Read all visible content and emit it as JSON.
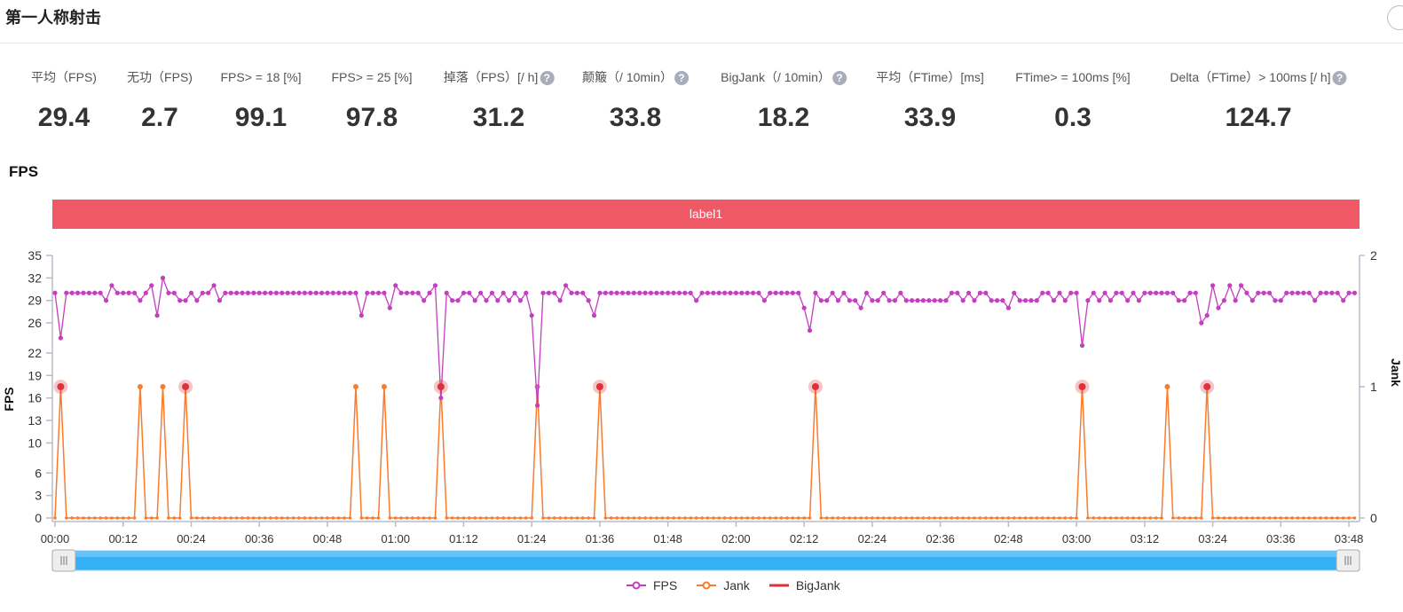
{
  "header": {
    "title": "第一人称射击"
  },
  "stats": [
    {
      "label": "平均（FPS)",
      "value": "29.4",
      "help": false
    },
    {
      "label": "无功（FPS)",
      "value": "2.7",
      "help": false
    },
    {
      "label": "FPS> = 18 [%]",
      "value": "99.1",
      "help": false
    },
    {
      "label": "FPS> = 25 [%]",
      "value": "97.8",
      "help": false
    },
    {
      "label": "掉落（FPS）[/ h]",
      "value": "31.2",
      "help": true
    },
    {
      "label": "颠簸（/ 10min）",
      "value": "33.8",
      "help": true
    },
    {
      "label": "BigJank（/ 10min）",
      "value": "18.2",
      "help": true
    },
    {
      "label": "平均（FTime）[ms]",
      "value": "33.9",
      "help": false
    },
    {
      "label": "FTime> = 100ms [%]",
      "value": "0.3",
      "help": false
    },
    {
      "label": "Delta（FTime）> 100ms [/ h]",
      "value": "124.7",
      "help": true
    }
  ],
  "help_icon": "?",
  "section": {
    "title": "FPS",
    "band_label": "label1"
  },
  "colors": {
    "fps": "#c23fbf",
    "jank": "#fb7a2c",
    "bigjank": "#e0303a",
    "band": "#ef5865",
    "slider": "#35b0f5"
  },
  "chart_data": {
    "type": "line",
    "ylabel": "FPS",
    "y2label": "Jank",
    "ylim": [
      0,
      35
    ],
    "y2lim": [
      0,
      2
    ],
    "yticks": [
      0,
      3,
      6,
      10,
      13,
      16,
      19,
      22,
      26,
      29,
      32,
      35
    ],
    "y2ticks": [
      0,
      1,
      2
    ],
    "xticks": [
      "00:00",
      "00:12",
      "00:24",
      "00:36",
      "00:48",
      "01:00",
      "01:12",
      "01:24",
      "01:36",
      "01:48",
      "02:00",
      "02:12",
      "02:24",
      "02:36",
      "02:48",
      "03:00",
      "03:12",
      "03:24",
      "03:36",
      "03:48"
    ],
    "x_step_seconds": 1,
    "series": [
      {
        "name": "FPS",
        "axis": "left",
        "values": [
          30,
          24,
          30,
          30,
          30,
          30,
          30,
          30,
          30,
          29,
          31,
          30,
          30,
          30,
          30,
          29,
          30,
          31,
          27,
          32,
          30,
          30,
          29,
          29,
          30,
          29,
          30,
          30,
          31,
          29,
          30,
          30,
          30,
          30,
          30,
          30,
          30,
          30,
          30,
          30,
          30,
          30,
          30,
          30,
          30,
          30,
          30,
          30,
          30,
          30,
          30,
          30,
          30,
          30,
          27,
          30,
          30,
          30,
          30,
          28,
          31,
          30,
          30,
          30,
          30,
          29,
          30,
          31,
          16,
          30,
          29,
          29,
          30,
          30,
          29,
          30,
          29,
          30,
          29,
          30,
          29,
          30,
          29,
          30,
          27,
          15,
          30,
          30,
          30,
          29,
          31,
          30,
          30,
          30,
          29,
          27,
          30,
          30,
          30,
          30,
          30,
          30,
          30,
          30,
          30,
          30,
          30,
          30,
          30,
          30,
          30,
          30,
          30,
          29,
          30,
          30,
          30,
          30,
          30,
          30,
          30,
          30,
          30,
          30,
          30,
          29,
          30,
          30,
          30,
          30,
          30,
          30,
          28,
          25,
          30,
          29,
          29,
          30,
          29,
          30,
          29,
          29,
          28,
          30,
          29,
          29,
          30,
          29,
          29,
          30,
          29,
          29,
          29,
          29,
          29,
          29,
          29,
          29,
          30,
          30,
          29,
          30,
          29,
          30,
          30,
          29,
          29,
          29,
          28,
          30,
          29,
          29,
          29,
          29,
          30,
          30,
          29,
          30,
          29,
          30,
          30,
          23,
          29,
          30,
          29,
          30,
          29,
          30,
          30,
          29,
          30,
          29,
          30,
          30,
          30,
          30,
          30,
          30,
          29,
          29,
          30,
          30,
          26,
          27,
          31,
          28,
          29,
          31,
          29,
          31,
          30,
          29,
          30,
          30,
          30,
          29,
          29,
          30,
          30,
          30,
          30,
          30,
          29,
          30,
          30,
          30,
          30,
          29,
          30,
          30
        ]
      },
      {
        "name": "Jank",
        "axis": "right",
        "length": 230,
        "ones_at_seconds": [
          1,
          15,
          19,
          23,
          53,
          58,
          68,
          85,
          96,
          134,
          181,
          196,
          203
        ]
      },
      {
        "name": "BigJank",
        "axis": "right",
        "ones_at_seconds": [
          1,
          23,
          68,
          96,
          134,
          181,
          203
        ]
      }
    ],
    "legend": [
      "FPS",
      "Jank",
      "BigJank"
    ],
    "legend_position": "bottom-center",
    "zoom_range": [
      0,
      1
    ]
  }
}
